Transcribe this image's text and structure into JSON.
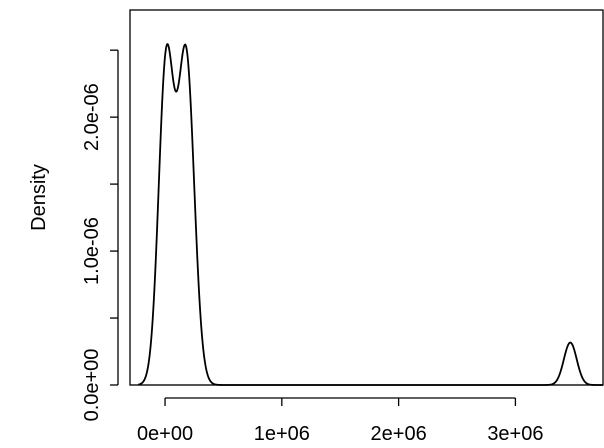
{
  "chart_data": {
    "type": "line",
    "title": "",
    "xlabel": "",
    "ylabel": "Density",
    "xlim": [
      -300000,
      3750000
    ],
    "ylim": [
      0,
      2.8e-06
    ],
    "x_ticks": [
      {
        "value": 0,
        "label": "0e+00"
      },
      {
        "value": 1000000,
        "label": "1e+06"
      },
      {
        "value": 2000000,
        "label": "2e+06"
      },
      {
        "value": 3000000,
        "label": "3e+06"
      }
    ],
    "y_ticks": [
      {
        "value": 0,
        "label": "0.0e+00"
      },
      {
        "value": 5e-07,
        "label": ""
      },
      {
        "value": 1e-06,
        "label": "1.0e-06"
      },
      {
        "value": 1.5e-06,
        "label": ""
      },
      {
        "value": 2e-06,
        "label": "2.0e-06"
      },
      {
        "value": 2.5e-06,
        "label": ""
      }
    ],
    "grid": false,
    "baseline": 0,
    "series": [
      {
        "components": [
          {
            "mean": 10000,
            "sd": 65000,
            "weight": 0.39
          },
          {
            "mean": 180000,
            "sd": 70000,
            "weight": 0.43
          },
          {
            "mean": 3470000,
            "sd": 55000,
            "weight": 0.0437
          }
        ],
        "x": [
          -230000,
          0,
          10000,
          100000,
          160000,
          180000,
          300000,
          400000,
          600000,
          2000000,
          3300000,
          3470000,
          3650000,
          3750000
        ],
        "y": [
          3e-08,
          2.49e-06,
          2.6e-06,
          2.11e-06,
          2.3e-06,
          2.27e-06,
          1.11e-06,
          1.1e-07,
          0,
          0,
          2e-08,
          3.2e-07,
          2e-08,
          0
        ]
      }
    ]
  }
}
